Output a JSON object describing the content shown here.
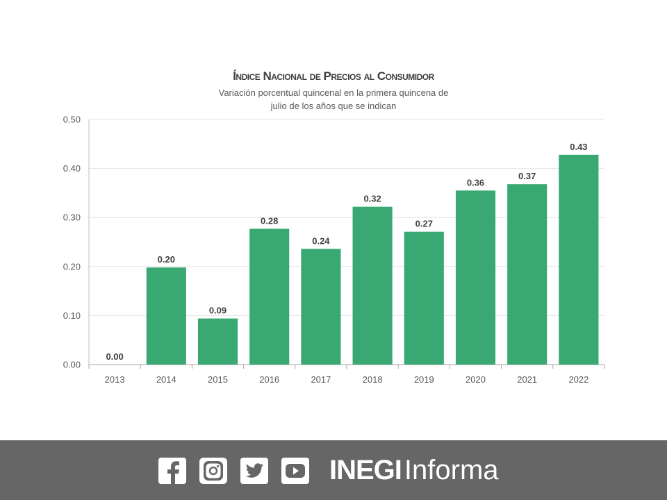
{
  "chart_data": {
    "type": "bar",
    "title": "Índice Nacional de Precios al Consumidor",
    "subtitle_lines": [
      "Variación porcentual quincenal en la primera quincena de",
      "julio de los años que se indican"
    ],
    "categories": [
      "2013",
      "2014",
      "2015",
      "2016",
      "2017",
      "2018",
      "2019",
      "2020",
      "2021",
      "2022"
    ],
    "values": [
      0.0,
      0.198,
      0.094,
      0.277,
      0.236,
      0.322,
      0.271,
      0.355,
      0.368,
      0.428
    ],
    "data_labels": [
      "0.00",
      "0.20",
      "0.09",
      "0.28",
      "0.24",
      "0.32",
      "0.27",
      "0.36",
      "0.37",
      "0.43"
    ],
    "yticks": [
      "0.00",
      "0.10",
      "0.20",
      "0.30",
      "0.40",
      "0.50"
    ],
    "ylim": [
      0,
      0.5
    ],
    "xlabel": "",
    "ylabel": "",
    "grid": true,
    "bar_color": "#3aa872"
  },
  "footer": {
    "icons": [
      "facebook-icon",
      "instagram-icon",
      "twitter-icon",
      "youtube-icon"
    ],
    "brand_strong": "INEGI",
    "brand_light": "Informa",
    "background": "#666666"
  }
}
